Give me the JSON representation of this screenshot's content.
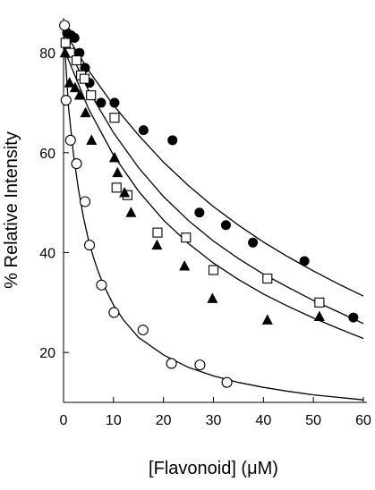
{
  "chart_data": {
    "type": "scatter",
    "title": "",
    "xlabel": "[Flavonoid] (μM)",
    "ylabel": "% Relative Intensity",
    "xlim": [
      0,
      60
    ],
    "ylim": [
      10,
      87
    ],
    "x_ticks": [
      0,
      10,
      20,
      30,
      40,
      50,
      60
    ],
    "y_ticks": [
      20,
      40,
      60,
      80
    ],
    "x_tick_labels": [
      "0",
      "10",
      "20",
      "30",
      "40",
      "50",
      "60"
    ],
    "y_tick_labels": [
      "20",
      "40",
      "60",
      "80"
    ],
    "grid": false,
    "legend": "none",
    "series": [
      {
        "marker": "filled-circle",
        "color": "#000000",
        "points": [
          [
            0.7,
            84
          ],
          [
            1.5,
            83.5
          ],
          [
            2.2,
            83
          ],
          [
            3.2,
            80
          ],
          [
            4.3,
            77
          ],
          [
            5.2,
            74
          ],
          [
            7.5,
            70
          ],
          [
            10.2,
            70
          ],
          [
            16,
            64.5
          ],
          [
            21.8,
            62.5
          ],
          [
            27.2,
            48
          ],
          [
            32.5,
            45.5
          ],
          [
            37.9,
            42
          ],
          [
            48.2,
            38.3
          ],
          [
            58,
            27
          ]
        ],
        "fit": [
          [
            0,
            84.5
          ],
          [
            5,
            76.5
          ],
          [
            10,
            69.5
          ],
          [
            15,
            63.5
          ],
          [
            20,
            58.1
          ],
          [
            25,
            53.4
          ],
          [
            30,
            49.2
          ],
          [
            35,
            45.5
          ],
          [
            40,
            42.1
          ],
          [
            45,
            39.1
          ],
          [
            50,
            36.3
          ],
          [
            55,
            33.7
          ],
          [
            60,
            31.3
          ]
        ]
      },
      {
        "marker": "open-square",
        "color": "#000000",
        "points": [
          [
            0.4,
            82
          ],
          [
            1.3,
            80
          ],
          [
            2.6,
            78.5
          ],
          [
            3.5,
            75.5
          ],
          [
            4.2,
            74.8
          ],
          [
            5.5,
            71.5
          ],
          [
            10.2,
            67
          ],
          [
            10.6,
            53
          ],
          [
            12.8,
            51.5
          ],
          [
            18.8,
            44
          ],
          [
            24.5,
            43
          ],
          [
            30,
            36.5
          ],
          [
            40.8,
            34.8
          ],
          [
            51.2,
            30
          ]
        ],
        "fit": [
          [
            0,
            83
          ],
          [
            5,
            72.5
          ],
          [
            10,
            64
          ],
          [
            15,
            57
          ],
          [
            20,
            51.2
          ],
          [
            25,
            46.4
          ],
          [
            30,
            42.3
          ],
          [
            35,
            38.8
          ],
          [
            40,
            35.7
          ],
          [
            45,
            33
          ],
          [
            50,
            30.4
          ],
          [
            55,
            28.1
          ],
          [
            60,
            25.8
          ]
        ]
      },
      {
        "marker": "filled-triangle",
        "color": "#000000",
        "points": [
          [
            0.3,
            80
          ],
          [
            1.2,
            74
          ],
          [
            2.3,
            73
          ],
          [
            3.2,
            71.5
          ],
          [
            4.4,
            68
          ],
          [
            5.6,
            62.5
          ],
          [
            10.2,
            59
          ],
          [
            10.8,
            56
          ],
          [
            12.2,
            52
          ],
          [
            13.5,
            48
          ],
          [
            18.7,
            41.5
          ],
          [
            24.2,
            37.3
          ],
          [
            29.8,
            30.8
          ],
          [
            40.8,
            26.5
          ],
          [
            51.2,
            27.2
          ]
        ],
        "fit": [
          [
            0,
            81
          ],
          [
            5,
            68.8
          ],
          [
            10,
            59.5
          ],
          [
            15,
            52.3
          ],
          [
            20,
            46.5
          ],
          [
            25,
            41.8
          ],
          [
            30,
            37.9
          ],
          [
            35,
            34.6
          ],
          [
            40,
            31.7
          ],
          [
            45,
            29.2
          ],
          [
            50,
            26.9
          ],
          [
            55,
            24.8
          ],
          [
            60,
            22.8
          ]
        ]
      },
      {
        "marker": "open-circle",
        "color": "#000000",
        "points": [
          [
            0.2,
            85.5
          ],
          [
            0.5,
            70.5
          ],
          [
            1.4,
            62.5
          ],
          [
            2.6,
            57.8
          ],
          [
            4.3,
            50.2
          ],
          [
            5.2,
            41.5
          ],
          [
            7.6,
            33.5
          ],
          [
            10.1,
            28
          ],
          [
            15.9,
            24.5
          ],
          [
            21.6,
            17.8
          ],
          [
            27.3,
            17.5
          ],
          [
            32.7,
            14
          ]
        ],
        "fit": [
          [
            0,
            85
          ],
          [
            1,
            69
          ],
          [
            2,
            59.5
          ],
          [
            3,
            52.5
          ],
          [
            4,
            47
          ],
          [
            5,
            42.5
          ],
          [
            6,
            39
          ],
          [
            7,
            36
          ],
          [
            8,
            33.5
          ],
          [
            10,
            29.5
          ],
          [
            12,
            26.5
          ],
          [
            15,
            23
          ],
          [
            20,
            19.5
          ],
          [
            25,
            17
          ],
          [
            30,
            15.3
          ],
          [
            35,
            14
          ],
          [
            40,
            13
          ],
          [
            45,
            12.2
          ],
          [
            50,
            11.5
          ],
          [
            55,
            11
          ],
          [
            60,
            10.5
          ]
        ]
      }
    ]
  }
}
